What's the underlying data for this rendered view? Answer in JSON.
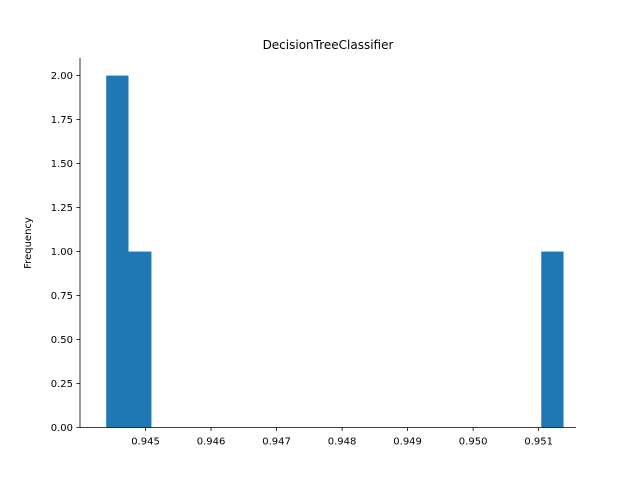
{
  "chart_data": {
    "type": "bar",
    "title": "DecisionTreeClassifier",
    "xlabel": "",
    "ylabel": "Frequency",
    "bins": [
      {
        "x0": 0.9444,
        "x1": 0.94474,
        "value": 2
      },
      {
        "x0": 0.94474,
        "x1": 0.94509,
        "value": 1
      },
      {
        "x0": 0.95104,
        "x1": 0.95138,
        "value": 1
      }
    ],
    "xlim": [
      0.944,
      0.95157
    ],
    "ylim": [
      0,
      2.1
    ],
    "xticks": [
      0.945,
      0.946,
      0.947,
      0.948,
      0.949,
      0.95,
      0.951
    ],
    "xtick_labels": [
      "0.945",
      "0.946",
      "0.947",
      "0.948",
      "0.949",
      "0.950",
      "0.951"
    ],
    "yticks": [
      0.0,
      0.25,
      0.5,
      0.75,
      1.0,
      1.25,
      1.5,
      1.75,
      2.0
    ],
    "ytick_labels": [
      "0.00",
      "0.25",
      "0.50",
      "0.75",
      "1.00",
      "1.25",
      "1.50",
      "1.75",
      "2.00"
    ],
    "grid": false,
    "bar_color": "#1f77b4"
  }
}
